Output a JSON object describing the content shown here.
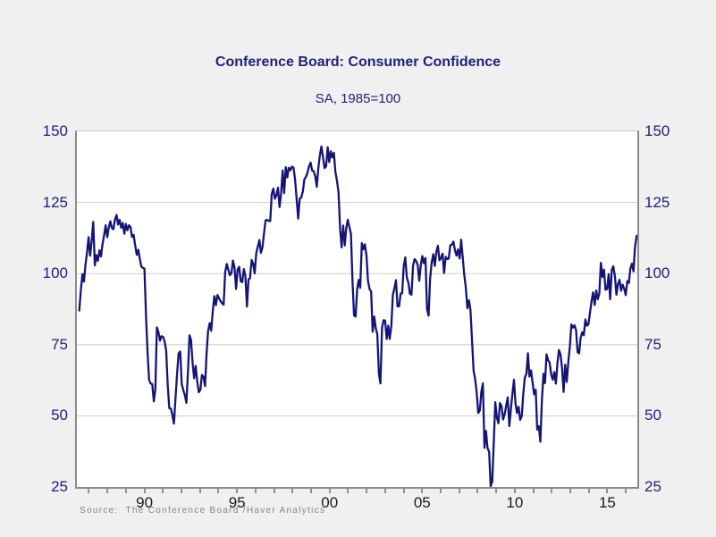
{
  "chart_data": {
    "type": "line",
    "title": "Conference Board: Consumer Confidence",
    "subtitle": "SA, 1985=100",
    "source": "Source:  The Conference Board /Haver Analytics",
    "legend": "none",
    "grid": "horizontal",
    "line_color": "#141478",
    "ylim": [
      25,
      150
    ],
    "y_ticks": [
      25,
      50,
      75,
      100,
      125,
      150
    ],
    "x_domain": [
      1986.35,
      2016.62
    ],
    "data_span": [
      1986.48,
      2016.58
    ],
    "x_minor_tick_step": 1,
    "x_tick_labels": [
      {
        "year": 1990,
        "label": "90"
      },
      {
        "year": 1995,
        "label": "95"
      },
      {
        "year": 2000,
        "label": "00"
      },
      {
        "year": 2005,
        "label": "05"
      },
      {
        "year": 2010,
        "label": "10"
      },
      {
        "year": 2015,
        "label": "15"
      }
    ],
    "series": [
      {
        "name": "Consumer Confidence Index (SA, 1985=100)",
        "frequency": "monthly",
        "start": "1987-01",
        "end": "2016-12",
        "values": [
          87.0,
          94.0,
          99.8,
          97.2,
          103.0,
          107.5,
          112.8,
          106.3,
          111.5,
          118.2,
          102.9,
          106.5,
          104.5,
          108.2,
          106.0,
          110.4,
          113.5,
          117.0,
          112.8,
          116.2,
          118.4,
          116.0,
          115.6,
          119.0,
          120.6,
          117.2,
          118.9,
          116.1,
          117.8,
          114.0,
          117.5,
          115.2,
          117.0,
          116.4,
          112.9,
          113.6,
          110.0,
          106.6,
          108.4,
          105.2,
          102.4,
          102.0,
          101.7,
          84.7,
          72.1,
          62.6,
          61.3,
          61.2,
          55.1,
          59.4,
          81.1,
          79.4,
          76.4,
          78.0,
          77.7,
          76.1,
          72.9,
          60.4,
          52.7,
          52.5,
          50.2,
          47.3,
          56.5,
          64.8,
          71.9,
          72.6,
          61.2,
          59.0,
          57.3,
          54.6,
          65.6,
          78.3,
          76.7,
          68.5,
          63.2,
          67.6,
          61.9,
          58.3,
          59.2,
          64.4,
          63.8,
          60.5,
          71.9,
          79.8,
          82.6,
          79.9,
          86.7,
          92.1,
          88.9,
          92.5,
          91.3,
          90.4,
          89.5,
          89.1,
          100.4,
          103.4,
          101.4,
          99.4,
          100.2,
          104.6,
          102.0,
          94.6,
          101.4,
          102.4,
          97.3,
          97.0,
          101.6,
          99.2,
          88.4,
          98.0,
          98.4,
          104.8,
          103.5,
          100.1,
          107.2,
          109.5,
          111.8,
          107.3,
          109.2,
          114.2,
          118.7,
          118.9,
          118.5,
          118.5,
          127.9,
          129.9,
          126.3,
          127.6,
          130.2,
          123.4,
          128.1,
          136.2,
          128.3,
          137.4,
          133.8,
          137.2,
          136.3,
          137.6,
          137.2,
          133.1,
          126.4,
          119.3,
          126.4,
          126.7,
          128.9,
          133.1,
          134.0,
          135.5,
          137.7,
          139.0,
          136.2,
          136.0,
          134.2,
          130.5,
          137.0,
          141.7,
          144.7,
          140.8,
          137.1,
          137.7,
          144.4,
          139.2,
          143.0,
          140.8,
          142.5,
          135.8,
          132.6,
          128.6,
          115.7,
          109.2,
          116.9,
          109.9,
          116.1,
          118.9,
          116.3,
          114.0,
          97.0,
          85.3,
          84.9,
          94.6,
          97.8,
          95.0,
          110.7,
          108.5,
          110.3,
          106.3,
          97.4,
          94.5,
          93.7,
          79.6,
          84.9,
          80.7,
          78.8,
          64.8,
          61.4,
          81.0,
          83.6,
          83.5,
          77.0,
          81.7,
          77.0,
          81.7,
          92.5,
          94.8,
          97.7,
          88.5,
          88.5,
          93.0,
          93.1,
          102.8,
          105.7,
          98.7,
          96.7,
          92.9,
          92.6,
          102.7,
          105.1,
          104.4,
          103.0,
          97.5,
          103.1,
          106.2,
          103.6,
          105.5,
          87.5,
          85.2,
          98.3,
          103.8,
          106.8,
          102.7,
          107.5,
          109.8,
          104.7,
          105.4,
          107.0,
          100.2,
          105.9,
          105.1,
          105.3,
          110.0,
          110.2,
          111.2,
          108.2,
          106.3,
          108.5,
          105.3,
          111.9,
          105.6,
          99.5,
          95.2,
          87.8,
          90.6,
          87.3,
          76.4,
          65.9,
          62.8,
          58.1,
          51.0,
          51.9,
          58.5,
          61.4,
          38.8,
          44.7,
          38.6,
          37.4,
          25.3,
          26.9,
          40.8,
          54.8,
          49.3,
          47.4,
          54.5,
          53.4,
          48.7,
          50.6,
          53.6,
          56.5,
          46.4,
          52.3,
          57.7,
          62.7,
          54.3,
          51.0,
          53.2,
          48.6,
          49.9,
          57.8,
          63.4,
          64.8,
          72.0,
          63.8,
          66.0,
          61.7,
          57.6,
          59.2,
          45.2,
          46.4,
          40.9,
          55.2,
          64.8,
          61.5,
          71.6,
          69.5,
          68.7,
          64.4,
          62.7,
          65.4,
          61.3,
          68.4,
          73.1,
          71.5,
          66.7,
          58.4,
          68.0,
          61.9,
          69.0,
          74.3,
          82.1,
          81.0,
          81.8,
          80.2,
          72.4,
          72.0,
          77.5,
          79.4,
          78.3,
          83.9,
          81.7,
          82.2,
          86.4,
          90.3,
          93.4,
          89.0,
          94.1,
          91.0,
          93.1,
          103.8,
          98.8,
          101.4,
          94.3,
          94.6,
          99.8,
          91.0,
          101.3,
          102.6,
          99.1,
          92.6,
          96.3,
          97.8,
          94.0,
          96.1,
          94.7,
          92.4,
          97.4,
          96.7,
          101.8,
          103.5,
          100.8,
          109.4,
          113.3
        ]
      }
    ],
    "colors": {
      "background": "#f0f0f1",
      "plot_background": "#ffffff",
      "spine": "#8a8a8a",
      "grid": "#cdcdcd",
      "navy_text": "#20207e",
      "x_label_text": "#1a1a1a",
      "source_text": "#848484"
    }
  }
}
